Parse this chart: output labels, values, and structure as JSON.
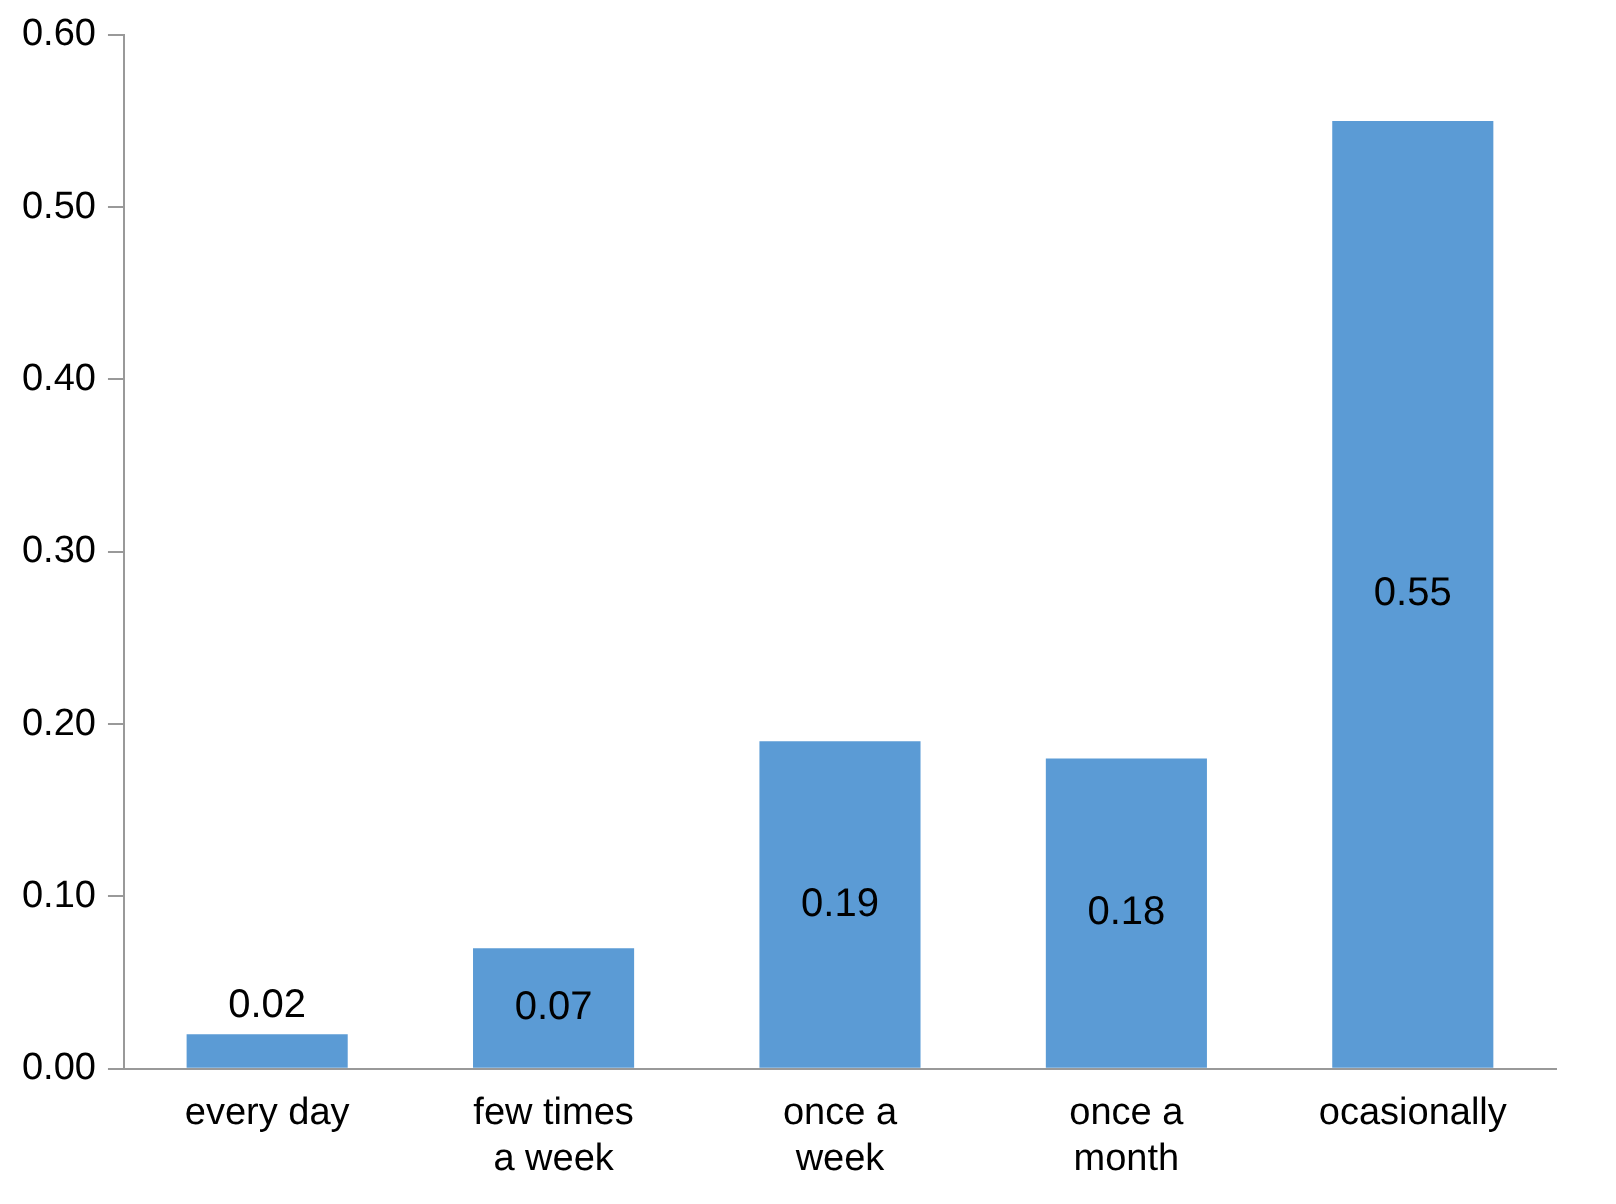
{
  "chart_data": {
    "type": "bar",
    "categories": [
      "every day",
      "few times a week",
      "once a week",
      "once a month",
      "ocasionally"
    ],
    "values": [
      0.02,
      0.07,
      0.19,
      0.18,
      0.55
    ],
    "color": "#5b9bd5",
    "ylim": [
      0,
      0.6
    ],
    "yticks": [
      {
        "value": 0,
        "label": "0.00"
      },
      {
        "value": 0.1,
        "label": "0.10"
      },
      {
        "value": 0.2,
        "label": "0.20"
      },
      {
        "value": 0.3,
        "label": "0.30"
      },
      {
        "value": 0.4,
        "label": "0.40"
      },
      {
        "value": 0.5,
        "label": "0.50"
      },
      {
        "value": 0.6,
        "label": "0.60"
      }
    ],
    "grid": false,
    "legend": false,
    "data_labels": true
  }
}
